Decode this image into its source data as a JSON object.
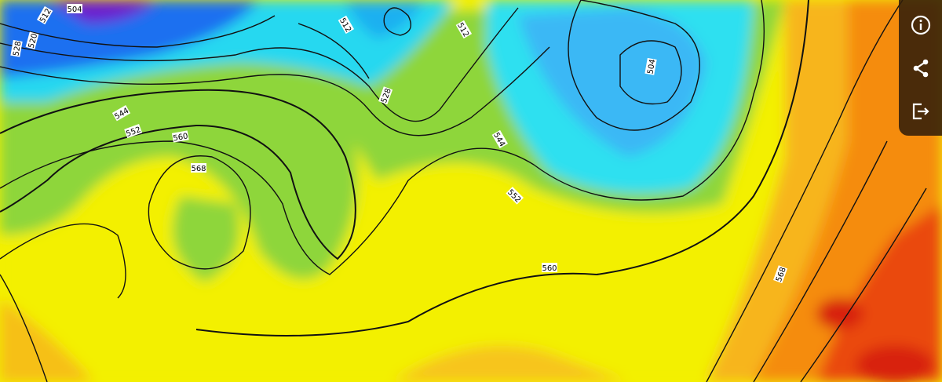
{
  "map": {
    "type": "500 hPa geopotential height (dam) forecast map",
    "contour_labels": [
      "504",
      "512",
      "520",
      "528",
      "512",
      "528",
      "544",
      "552",
      "560",
      "568",
      "512",
      "504",
      "544",
      "552",
      "560",
      "568"
    ],
    "colors": {
      "purple": "#6a1fd0",
      "blue": "#1f6ff0",
      "cyan": "#27d8f0",
      "green": "#7fcf3a",
      "yellow": "#f3f000",
      "orange": "#f59a12",
      "red": "#e8300f"
    }
  },
  "toolbar": {
    "items": [
      {
        "icon": "info-icon"
      },
      {
        "icon": "share-icon"
      },
      {
        "icon": "export-icon"
      }
    ]
  }
}
